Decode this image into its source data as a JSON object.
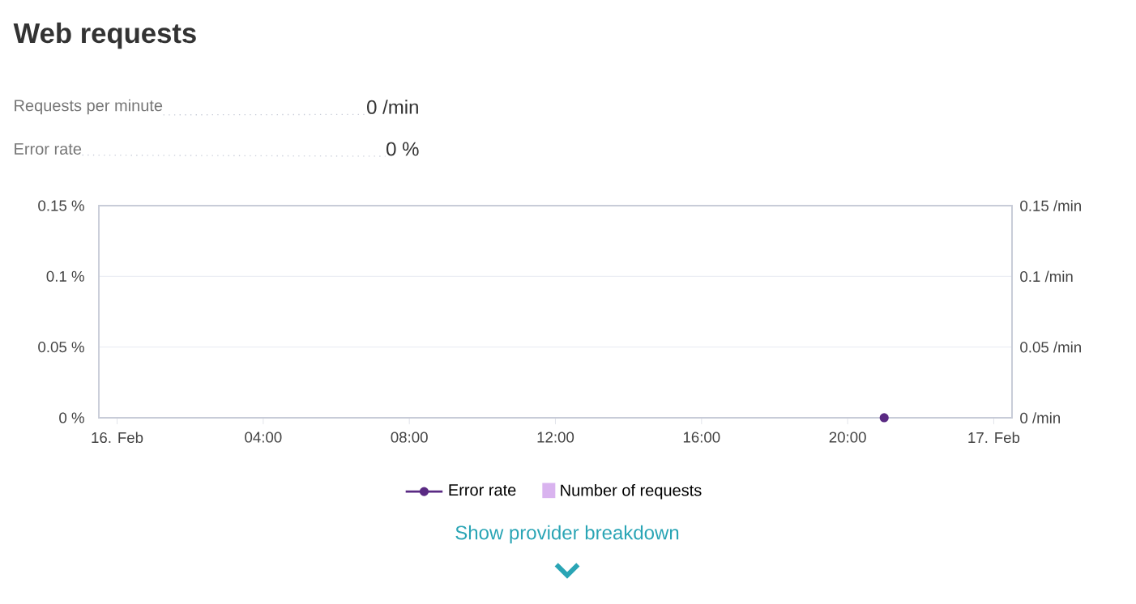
{
  "chart_data": {
    "type": "line",
    "title": "Web requests",
    "annotations": [
      "Requests per minute",
      "0 /min",
      "Error rate",
      "0 %",
      "Show provider breakdown"
    ],
    "series": [
      {
        "name": "Error rate",
        "color": "#5a2a83",
        "x": [
          21
        ],
        "values": [
          0
        ],
        "marker": "circle"
      },
      {
        "name": "Number of requests",
        "color": "#d9b3ef",
        "type": "bar",
        "x": [
          21
        ],
        "values": [
          0
        ]
      }
    ],
    "xlim": [
      -0.5,
      24.5
    ],
    "xticks": [
      {
        "value": 0,
        "label": "16. Feb"
      },
      {
        "value": 4,
        "label": "04:00"
      },
      {
        "value": 8,
        "label": "08:00"
      },
      {
        "value": 12,
        "label": "12:00"
      },
      {
        "value": 16,
        "label": "16:00"
      },
      {
        "value": 20,
        "label": "20:00"
      },
      {
        "value": 24,
        "label": "17. Feb"
      }
    ],
    "ylim": [
      0,
      0.15
    ],
    "yticks": [
      {
        "value": 0,
        "label": "0 %"
      },
      {
        "value": 0.05,
        "label": "0.05 %"
      },
      {
        "value": 0.1,
        "label": "0.1 %"
      },
      {
        "value": 0.15,
        "label": "0.15 %"
      }
    ],
    "y2lim": [
      0,
      0.15
    ],
    "y2ticks": [
      {
        "value": 0,
        "label": "0 /min"
      },
      {
        "value": 0.05,
        "label": "0.05 /min"
      },
      {
        "value": 0.1,
        "label": "0.1 /min"
      },
      {
        "value": 0.15,
        "label": "0.15 /min"
      }
    ],
    "grid": "y",
    "legend": "bottom"
  }
}
